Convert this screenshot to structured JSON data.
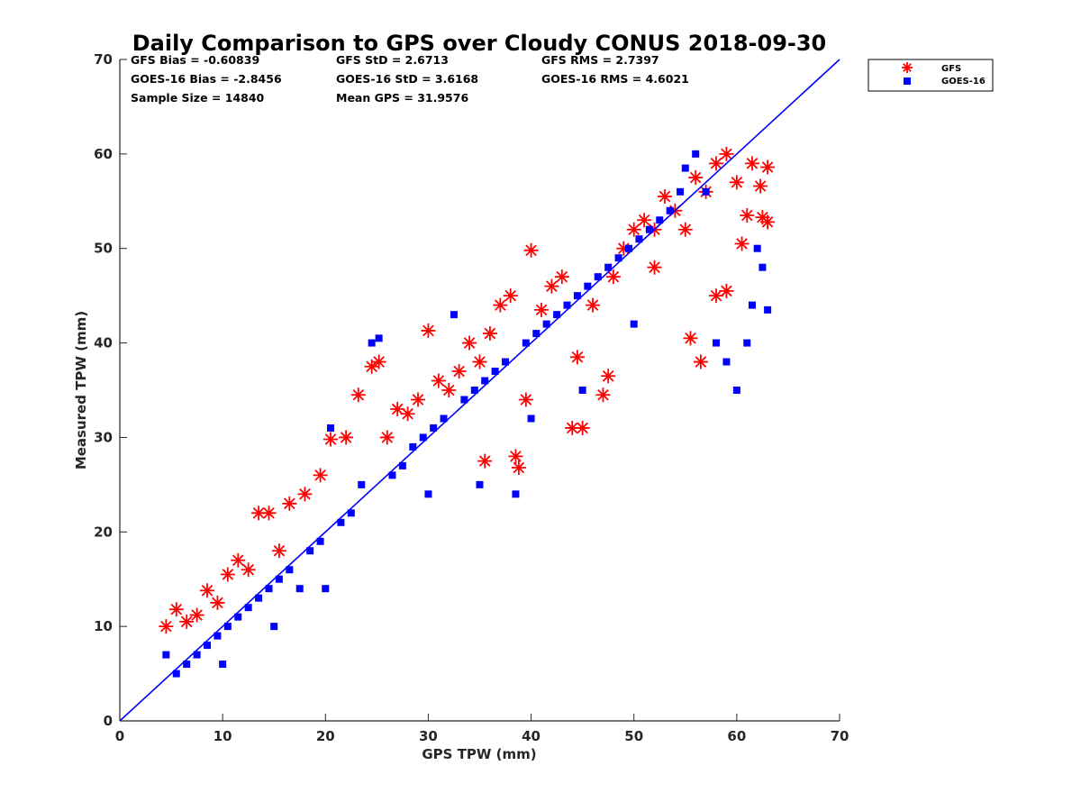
{
  "chart_data": {
    "type": "scatter",
    "title": "Daily Comparison to GPS over Cloudy CONUS 2018-09-30",
    "xlabel": "GPS TPW (mm)",
    "ylabel": "Measured TPW (mm)",
    "xlim": [
      0,
      70
    ],
    "ylim": [
      0,
      70
    ],
    "xticks": [
      "0",
      "10",
      "20",
      "30",
      "40",
      "50",
      "60",
      "70"
    ],
    "yticks": [
      "0",
      "10",
      "20",
      "30",
      "40",
      "50",
      "60",
      "70"
    ],
    "grid": false,
    "legend_position": "outside top-right",
    "stats": [
      [
        "GFS Bias = -0.60839",
        "GFS StD = 2.6713",
        "GFS RMS = 2.7397"
      ],
      [
        "GOES-16 Bias = -2.8456",
        "GOES-16 StD = 3.6168",
        "GOES-16 RMS = 4.6021"
      ],
      [
        "Sample Size = 14840",
        "Mean GPS = 31.9576"
      ]
    ],
    "series": [
      {
        "name": "GFS",
        "marker": "asterisk",
        "color": "#ff0000",
        "bias": -0.60839,
        "std": 2.6713,
        "rms": 2.7397,
        "points": [
          [
            4.5,
            10
          ],
          [
            5.5,
            11.8
          ],
          [
            6.5,
            10.5
          ],
          [
            7.5,
            11.2
          ],
          [
            8.5,
            13.8
          ],
          [
            9.5,
            12.5
          ],
          [
            10.5,
            15.5
          ],
          [
            11.5,
            17
          ],
          [
            12.5,
            16
          ],
          [
            13.5,
            22
          ],
          [
            14.5,
            22
          ],
          [
            15.5,
            18
          ],
          [
            16.5,
            23
          ],
          [
            18,
            24
          ],
          [
            19.5,
            26
          ],
          [
            20.5,
            29.8
          ],
          [
            22,
            30
          ],
          [
            23.2,
            34.5
          ],
          [
            24.5,
            37.5
          ],
          [
            25.2,
            38
          ],
          [
            26,
            30
          ],
          [
            27,
            33
          ],
          [
            28,
            32.5
          ],
          [
            29,
            34
          ],
          [
            30,
            41.3
          ],
          [
            31,
            36
          ],
          [
            32,
            35
          ],
          [
            33,
            37
          ],
          [
            34,
            40
          ],
          [
            35,
            38
          ],
          [
            35.5,
            27.5
          ],
          [
            36,
            41
          ],
          [
            37,
            44
          ],
          [
            38,
            45
          ],
          [
            38.5,
            28
          ],
          [
            38.8,
            26.8
          ],
          [
            39.5,
            34
          ],
          [
            40,
            49.8
          ],
          [
            41,
            43.5
          ],
          [
            42,
            46
          ],
          [
            43,
            47
          ],
          [
            44,
            31
          ],
          [
            45,
            31
          ],
          [
            46,
            44
          ],
          [
            47,
            34.5
          ],
          [
            47.5,
            36.5
          ],
          [
            48,
            47
          ],
          [
            49,
            50
          ],
          [
            50,
            52
          ],
          [
            51,
            53
          ],
          [
            52,
            48
          ],
          [
            53,
            55.5
          ],
          [
            54,
            54
          ],
          [
            55,
            52
          ],
          [
            55.5,
            40.5
          ],
          [
            56,
            57.5
          ],
          [
            56.5,
            38
          ],
          [
            57,
            56
          ],
          [
            58,
            59
          ],
          [
            59,
            60
          ],
          [
            60,
            57
          ],
          [
            60.5,
            50.5
          ],
          [
            61,
            53.5
          ],
          [
            61.5,
            59
          ],
          [
            62.3,
            56.6
          ],
          [
            62.5,
            53.3
          ],
          [
            63,
            52.8
          ],
          [
            63,
            58.6
          ],
          [
            59,
            45.5
          ],
          [
            58,
            45
          ],
          [
            44.5,
            38.5
          ],
          [
            52,
            52
          ]
        ]
      },
      {
        "name": "GOES-16",
        "marker": "square",
        "color": "#0000ff",
        "bias": -2.8456,
        "std": 3.6168,
        "rms": 4.6021,
        "points": [
          [
            4.5,
            7
          ],
          [
            5.5,
            5
          ],
          [
            6.5,
            6
          ],
          [
            7.5,
            7
          ],
          [
            8.5,
            8
          ],
          [
            9.5,
            9
          ],
          [
            10.5,
            10
          ],
          [
            11.5,
            11
          ],
          [
            12.5,
            12
          ],
          [
            13.5,
            13
          ],
          [
            14.5,
            14
          ],
          [
            15.5,
            15
          ],
          [
            16.5,
            16
          ],
          [
            17.5,
            14
          ],
          [
            18.5,
            18
          ],
          [
            19.5,
            19
          ],
          [
            20.5,
            31
          ],
          [
            21.5,
            21
          ],
          [
            22.5,
            22
          ],
          [
            23.5,
            25
          ],
          [
            24.5,
            40
          ],
          [
            25.2,
            40.5
          ],
          [
            26.5,
            26
          ],
          [
            27.5,
            27
          ],
          [
            28.5,
            29
          ],
          [
            29.5,
            30
          ],
          [
            30.5,
            31
          ],
          [
            31.5,
            32
          ],
          [
            32.5,
            43
          ],
          [
            33.5,
            34
          ],
          [
            34.5,
            35
          ],
          [
            35.5,
            36
          ],
          [
            36.5,
            37
          ],
          [
            37.5,
            38
          ],
          [
            38.5,
            24
          ],
          [
            39.5,
            40
          ],
          [
            40.5,
            41
          ],
          [
            41.5,
            42
          ],
          [
            42.5,
            43
          ],
          [
            43.5,
            44
          ],
          [
            44.5,
            45
          ],
          [
            45.5,
            46
          ],
          [
            46.5,
            47
          ],
          [
            47.5,
            48
          ],
          [
            48.5,
            49
          ],
          [
            49.5,
            50
          ],
          [
            50.5,
            51
          ],
          [
            51.5,
            52
          ],
          [
            52.5,
            53
          ],
          [
            53.5,
            54
          ],
          [
            54.5,
            56
          ],
          [
            55,
            58.5
          ],
          [
            56,
            60
          ],
          [
            57,
            56
          ],
          [
            58,
            40
          ],
          [
            59,
            38
          ],
          [
            60,
            35
          ],
          [
            61,
            40
          ],
          [
            61.5,
            44
          ],
          [
            62,
            50
          ],
          [
            62.5,
            48
          ],
          [
            63,
            43.5
          ],
          [
            30,
            24
          ],
          [
            35,
            25
          ],
          [
            45,
            35
          ],
          [
            50,
            42
          ],
          [
            40,
            32
          ],
          [
            20,
            14
          ],
          [
            15,
            10
          ],
          [
            10,
            6
          ]
        ]
      }
    ]
  }
}
